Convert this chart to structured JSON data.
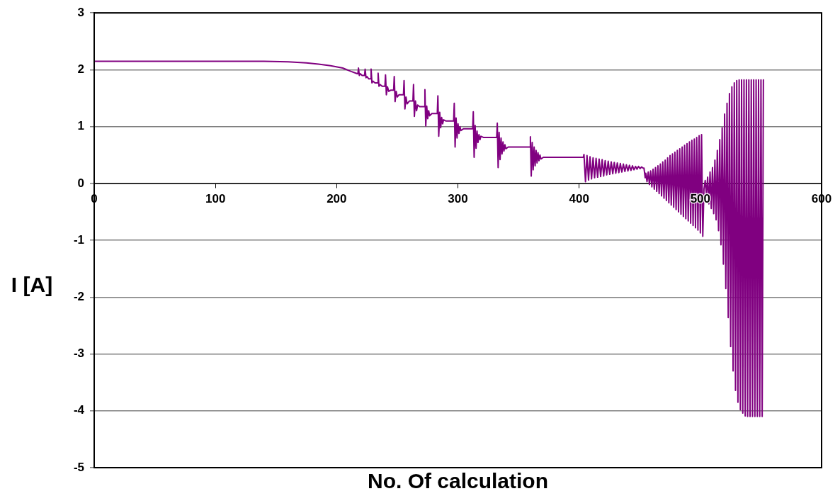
{
  "chart_data": {
    "type": "line",
    "xlabel": "No. Of calculation",
    "ylabel": "I [A]",
    "xlim": [
      0,
      600
    ],
    "xticks": [
      0,
      100,
      200,
      300,
      400,
      500,
      600
    ],
    "ylim": [
      -5,
      3
    ],
    "yticks": [
      -5,
      -4,
      -3,
      -2,
      -1,
      0,
      1,
      2,
      3
    ],
    "grid": "y",
    "legend": false,
    "marker": "none",
    "line_style": "solid",
    "series": [
      {
        "color": "#800080",
        "x": [
          0,
          100,
          140,
          160,
          175,
          185,
          195,
          205,
          212,
          217,
          217.5,
          218,
          218.7,
          219.5,
          221,
          223,
          223.5,
          224.2,
          225,
          226.5,
          228,
          228.4,
          229.1,
          230,
          231.5,
          233.7,
          234.2,
          234.9,
          235.8,
          237.5,
          239.8,
          240.3,
          241,
          241.9,
          243,
          244.5,
          247,
          247.5,
          248.2,
          249.1,
          250,
          251.5,
          255.1,
          255.6,
          256.3,
          257.2,
          258.1,
          260,
          262.9,
          263.4,
          264.1,
          265,
          265.9,
          266.8,
          268.5,
          272.3,
          272.8,
          273.5,
          274.3,
          275.1,
          275.9,
          276.7,
          278.5,
          283,
          283.5,
          284.2,
          285,
          285.8,
          286.6,
          287.4,
          288.2,
          290,
          296.5,
          297,
          297.7,
          298.5,
          299.3,
          300.1,
          300.9,
          301.7,
          302.5,
          304.5,
          312.2,
          312.7,
          313.4,
          314.2,
          315,
          315.8,
          316.6,
          317.4,
          318.2,
          319,
          321,
          332,
          332.5,
          333.2,
          334,
          334.8,
          335.6,
          336.4,
          337.2,
          338,
          338.8,
          339.6,
          341.5,
          359.3,
          359.8,
          360.5,
          361.3,
          362.1,
          362.9,
          363.7,
          364.5,
          365.3,
          366.1,
          366.9,
          367.7,
          368.5,
          370.5,
          403.5,
          404,
          405.25,
          406.5,
          407.75,
          409,
          410.25,
          411.5,
          412.75,
          414,
          415.25,
          416.5,
          417.75,
          419,
          420.25,
          421.5,
          422.75,
          424,
          425.25,
          426.5,
          427.75,
          429,
          430.25,
          431.5,
          432.75,
          434,
          435.25,
          436.5,
          437.75,
          439,
          440.25,
          441.5,
          442.75,
          444,
          445.25,
          446.5,
          447.75,
          449,
          450.25,
          451.5,
          452.75,
          453.5,
          454.5,
          455,
          456,
          457,
          458,
          459,
          460,
          461,
          462,
          463,
          464,
          465,
          466,
          467,
          468,
          469,
          470,
          471,
          472,
          473,
          474,
          475,
          476,
          477,
          478,
          479,
          480,
          481,
          482,
          483,
          484,
          485,
          486,
          487,
          488,
          489,
          490,
          491,
          492,
          493,
          494,
          495,
          496,
          497,
          498,
          499,
          500,
          501,
          502,
          503,
          504,
          505,
          506,
          507,
          508,
          509,
          510,
          511,
          512,
          513,
          514,
          515,
          516,
          517,
          518,
          519,
          520,
          521,
          522,
          523,
          524,
          525,
          526,
          527,
          528,
          529,
          530,
          531,
          532,
          533,
          534,
          535,
          536,
          537,
          538,
          539,
          540,
          541,
          542,
          543,
          544,
          545,
          546,
          547,
          548,
          549,
          550,
          551,
          552
        ],
        "values": [
          2.15,
          2.15,
          2.15,
          2.14,
          2.12,
          2.1,
          2.07,
          2.03,
          1.97,
          1.93,
          1.93,
          2.03,
          1.9,
          1.93,
          1.9,
          1.9,
          2.01,
          1.86,
          1.88,
          1.84,
          1.84,
          2.01,
          1.77,
          1.8,
          1.77,
          1.77,
          1.94,
          1.71,
          1.74,
          1.71,
          1.71,
          1.91,
          1.56,
          1.7,
          1.62,
          1.64,
          1.64,
          1.88,
          1.44,
          1.62,
          1.52,
          1.56,
          1.56,
          1.81,
          1.31,
          1.52,
          1.4,
          1.45,
          1.45,
          1.74,
          1.18,
          1.45,
          1.28,
          1.38,
          1.35,
          1.35,
          1.65,
          1.01,
          1.36,
          1.14,
          1.28,
          1.19,
          1.23,
          1.23,
          1.54,
          0.83,
          1.25,
          0.98,
          1.16,
          1.05,
          1.12,
          1.1,
          1.1,
          1.41,
          0.64,
          1.15,
          0.8,
          1.05,
          0.88,
          1,
          0.93,
          0.96,
          0.96,
          1.26,
          0.46,
          1.02,
          0.62,
          0.92,
          0.72,
          0.86,
          0.77,
          0.83,
          0.81,
          0.81,
          1.06,
          0.28,
          0.9,
          0.42,
          0.8,
          0.52,
          0.73,
          0.57,
          0.68,
          0.61,
          0.64,
          0.64,
          0.82,
          0.13,
          0.72,
          0.24,
          0.64,
          0.31,
          0.58,
          0.36,
          0.54,
          0.4,
          0.5,
          0.43,
          0.46,
          0.46,
          0.51,
          0.03,
          0.49,
          0.06,
          0.47,
          0.08,
          0.45,
          0.1,
          0.44,
          0.11,
          0.43,
          0.12,
          0.42,
          0.13,
          0.4,
          0.15,
          0.39,
          0.16,
          0.38,
          0.17,
          0.37,
          0.18,
          0.36,
          0.19,
          0.35,
          0.2,
          0.34,
          0.21,
          0.33,
          0.22,
          0.32,
          0.23,
          0.31,
          0.24,
          0.3,
          0.25,
          0.3,
          0.26,
          0.29,
          0.27,
          0.27,
          0.1,
          0.18,
          0.03,
          0.2,
          -0.02,
          0.22,
          -0.06,
          0.25,
          -0.1,
          0.28,
          -0.14,
          0.31,
          -0.18,
          0.34,
          -0.22,
          0.38,
          -0.26,
          0.41,
          -0.3,
          0.45,
          -0.34,
          0.49,
          -0.38,
          0.52,
          -0.42,
          0.55,
          -0.46,
          0.58,
          -0.5,
          0.61,
          -0.54,
          0.64,
          -0.58,
          0.67,
          -0.62,
          0.7,
          -0.66,
          0.73,
          -0.7,
          0.76,
          -0.74,
          0.78,
          -0.78,
          0.81,
          -0.82,
          0.84,
          -0.87,
          0.86,
          -0.93,
          -0.1,
          0.05,
          -0.19,
          0.11,
          -0.36,
          0.2,
          -0.44,
          0.28,
          -0.53,
          0.41,
          -0.64,
          0.58,
          -0.83,
          0.77,
          -1.08,
          0.98,
          -1.42,
          1.22,
          -1.85,
          1.41,
          -2.36,
          1.58,
          -2.87,
          1.7,
          -3.3,
          1.77,
          -3.64,
          1.81,
          -3.85,
          1.82,
          -3.98,
          1.82,
          -4.04,
          1.82,
          -4.09,
          1.82,
          -4.1,
          1.82,
          -4.1,
          1.82,
          -4.1,
          1.82,
          -4.1,
          1.82,
          -4.1,
          1.82,
          -4.1,
          1.82,
          -4.1,
          1.82
        ]
      }
    ]
  }
}
